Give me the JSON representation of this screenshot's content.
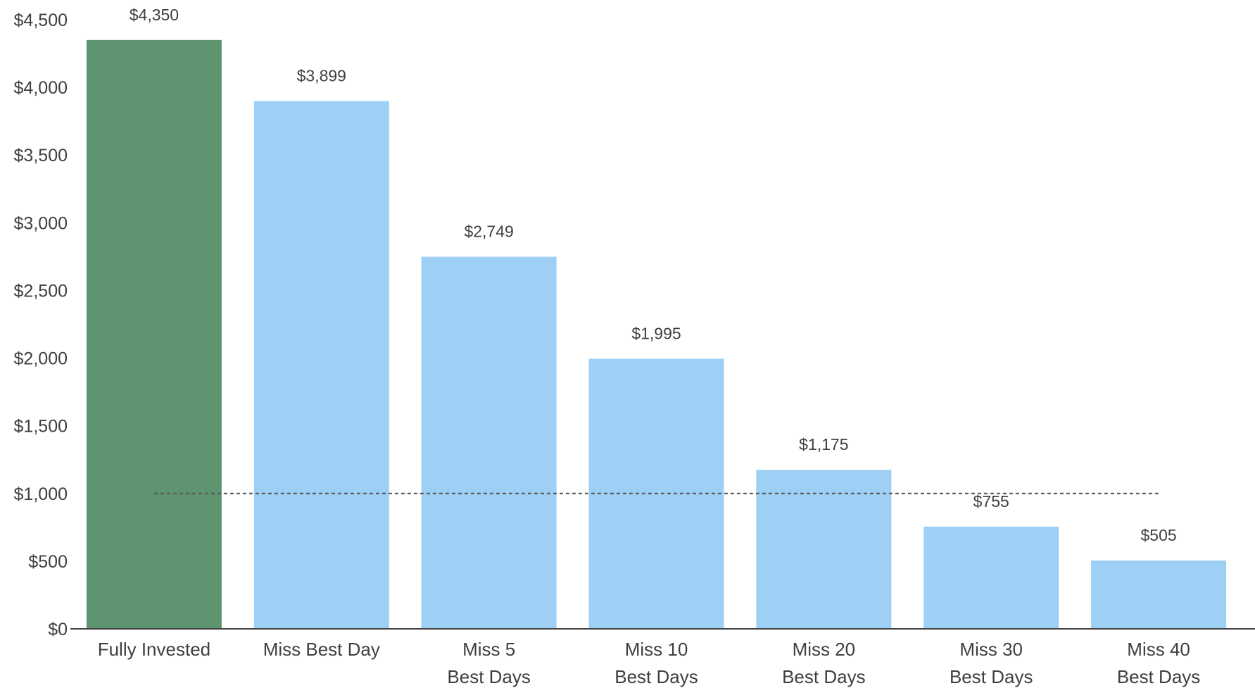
{
  "chart_data": {
    "type": "bar",
    "title": "",
    "xlabel": "",
    "ylabel": "",
    "categories": [
      "Fully Invested",
      "Miss Best Day",
      "Miss 5\nBest Days",
      "Miss 10\nBest Days",
      "Miss 20\nBest Days",
      "Miss 30\nBest Days",
      "Miss 40\nBest Days"
    ],
    "values": [
      4350,
      3899,
      2749,
      1995,
      1175,
      755,
      505
    ],
    "value_labels": [
      "$4,350",
      "$3,899",
      "$2,749",
      "$1,995",
      "$1,175",
      "$755",
      "$505"
    ],
    "ylim": [
      0,
      4500
    ],
    "yticks": [
      0,
      500,
      1000,
      1500,
      2000,
      2500,
      3000,
      3500,
      4000,
      4500
    ],
    "ytick_labels": [
      "$0",
      "$500",
      "$1,000",
      "$1,500",
      "$2,000",
      "$2,500",
      "$3,000",
      "$3,500",
      "$4,000",
      "$4,500"
    ],
    "reference_line": 1000,
    "grid": false,
    "legend": "none",
    "colors": {
      "highlight": "#5f9470",
      "bar": "#9ecff5",
      "axis": "#444444",
      "reference_line": "#555555",
      "text": "#3f3f3f"
    }
  }
}
